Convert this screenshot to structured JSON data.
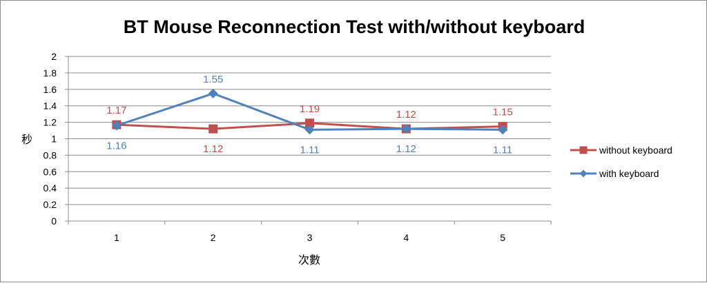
{
  "chart_data": {
    "type": "line",
    "title": "BT Mouse Reconnection Test with/without keyboard",
    "xlabel": "次數",
    "ylabel": "秒",
    "categories": [
      "1",
      "2",
      "3",
      "4",
      "5"
    ],
    "ylim": [
      0,
      2
    ],
    "yticks": [
      "0",
      "0.2",
      "0.4",
      "0.6",
      "0.8",
      "1",
      "1.2",
      "1.4",
      "1.6",
      "1.8",
      "2"
    ],
    "grid": true,
    "legend_position": "right",
    "series": [
      {
        "name": "without keyboard",
        "values": [
          1.17,
          1.12,
          1.19,
          1.12,
          1.15
        ],
        "labels": [
          "1.17",
          "1.12",
          "1.19",
          "1.12",
          "1.15"
        ],
        "color": "#c0504d",
        "marker": "square"
      },
      {
        "name": "with keyboard",
        "values": [
          1.16,
          1.55,
          1.11,
          1.12,
          1.11
        ],
        "labels": [
          "1.16",
          "1.55",
          "1.11",
          "1.12",
          "1.11"
        ],
        "color": "#4f81bd",
        "marker": "diamond"
      }
    ]
  }
}
